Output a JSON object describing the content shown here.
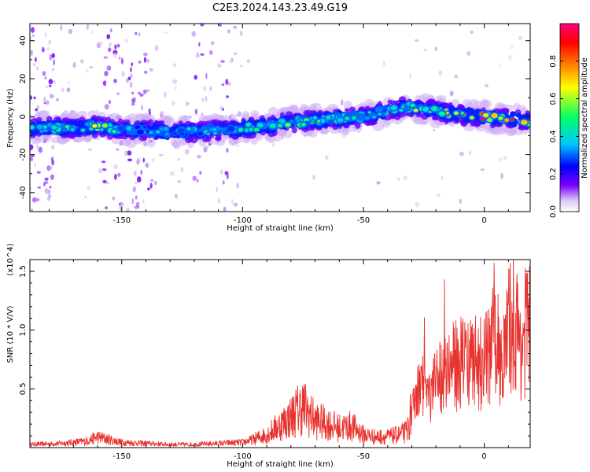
{
  "figure_title": "C2E3.2024.143.23.49.G19",
  "colors": {
    "snr_line": "#e8322d",
    "axis": "#000000",
    "spectrogram_cmap": [
      "#ffffff",
      "#d9c6f5",
      "#7a00ff",
      "#0000ff",
      "#00c8ff",
      "#00ff66",
      "#ffff00",
      "#ff8000",
      "#ff0000",
      "#ff0080"
    ]
  },
  "chart_data": [
    {
      "type": "heatmap",
      "title": "C2E3.2024.143.23.49.G19",
      "xlabel": "Height of straight line (km)",
      "ylabel": "Frequency (Hz)",
      "xlim": [
        -188,
        19
      ],
      "ylim": [
        -50,
        49
      ],
      "xticks": [
        -150,
        -100,
        -50,
        0
      ],
      "xtick_labels": [
        "-150",
        "-100",
        "-50",
        "0"
      ],
      "yticks": [
        -40,
        -20,
        0,
        20,
        40
      ],
      "ytick_labels": [
        "-40",
        "-20",
        "0",
        "20",
        "40"
      ],
      "colorbar": {
        "label": "Normalized spectral amplitude",
        "range": [
          0,
          1
        ],
        "ticks": [
          0.0,
          0.2,
          0.4,
          0.6,
          0.8
        ],
        "tick_labels": [
          "0.0",
          "0.2",
          "0.4",
          "0.6",
          "0.8"
        ]
      },
      "ridge": {
        "x": [
          -188,
          -170,
          -160,
          -150,
          -140,
          -130,
          -120,
          -110,
          -100,
          -90,
          -80,
          -70,
          -60,
          -50,
          -40,
          -35,
          -30,
          -20,
          -10,
          0,
          10,
          18
        ],
        "frequency": [
          -6,
          -6,
          -5,
          -7,
          -7,
          -8,
          -8,
          -7,
          -6,
          -5,
          -3,
          -2,
          -1,
          0,
          3,
          5,
          5,
          3,
          1,
          0,
          -1,
          -2
        ],
        "amplitude": [
          0.45,
          0.5,
          0.6,
          0.45,
          0.4,
          0.4,
          0.4,
          0.45,
          0.45,
          0.5,
          0.5,
          0.5,
          0.5,
          0.45,
          0.45,
          0.5,
          0.6,
          0.7,
          0.9,
          0.95,
          0.85,
          0.7
        ]
      },
      "grid": false
    },
    {
      "type": "line",
      "xlabel": "Height of straight line (km)",
      "ylabel": "SNR (10 * V/V)",
      "yscale_label": "(x10^4)",
      "xlim": [
        -188,
        19
      ],
      "ylim": [
        0,
        1.6
      ],
      "xticks": [
        -150,
        -100,
        -50,
        0
      ],
      "xtick_labels": [
        "-150",
        "-100",
        "-50",
        "0"
      ],
      "yticks": [
        0.5,
        1.0,
        1.5
      ],
      "ytick_labels": [
        "0.5",
        "1.0",
        "1.5"
      ],
      "series": [
        {
          "x": [
            -188,
            -175,
            -165,
            -160,
            -150,
            -140,
            -130,
            -120,
            -110,
            -100,
            -95,
            -90,
            -85,
            -80,
            -78,
            -75,
            -72,
            -70,
            -65,
            -60,
            -55,
            -50,
            -45,
            -40,
            -35,
            -32,
            -30,
            -27,
            -25,
            -22,
            -20,
            -18,
            -16,
            -14,
            -12,
            -10,
            -8,
            -6,
            -4,
            -2,
            0,
            2,
            4,
            6,
            8,
            10,
            12,
            14,
            16,
            18
          ],
          "values": [
            0.03,
            0.04,
            0.06,
            0.1,
            0.05,
            0.04,
            0.03,
            0.03,
            0.04,
            0.05,
            0.08,
            0.12,
            0.2,
            0.28,
            0.33,
            0.38,
            0.3,
            0.25,
            0.22,
            0.18,
            0.2,
            0.12,
            0.1,
            0.1,
            0.12,
            0.15,
            0.35,
            0.55,
            0.65,
            0.5,
            0.7,
            0.75,
            0.9,
            0.8,
            0.85,
            0.9,
            0.95,
            0.85,
            0.8,
            0.9,
            0.85,
            0.95,
            1.0,
            1.05,
            0.9,
            1.2,
            1.3,
            1.15,
            1.1,
            1.3
          ]
        }
      ],
      "grid": false
    }
  ]
}
